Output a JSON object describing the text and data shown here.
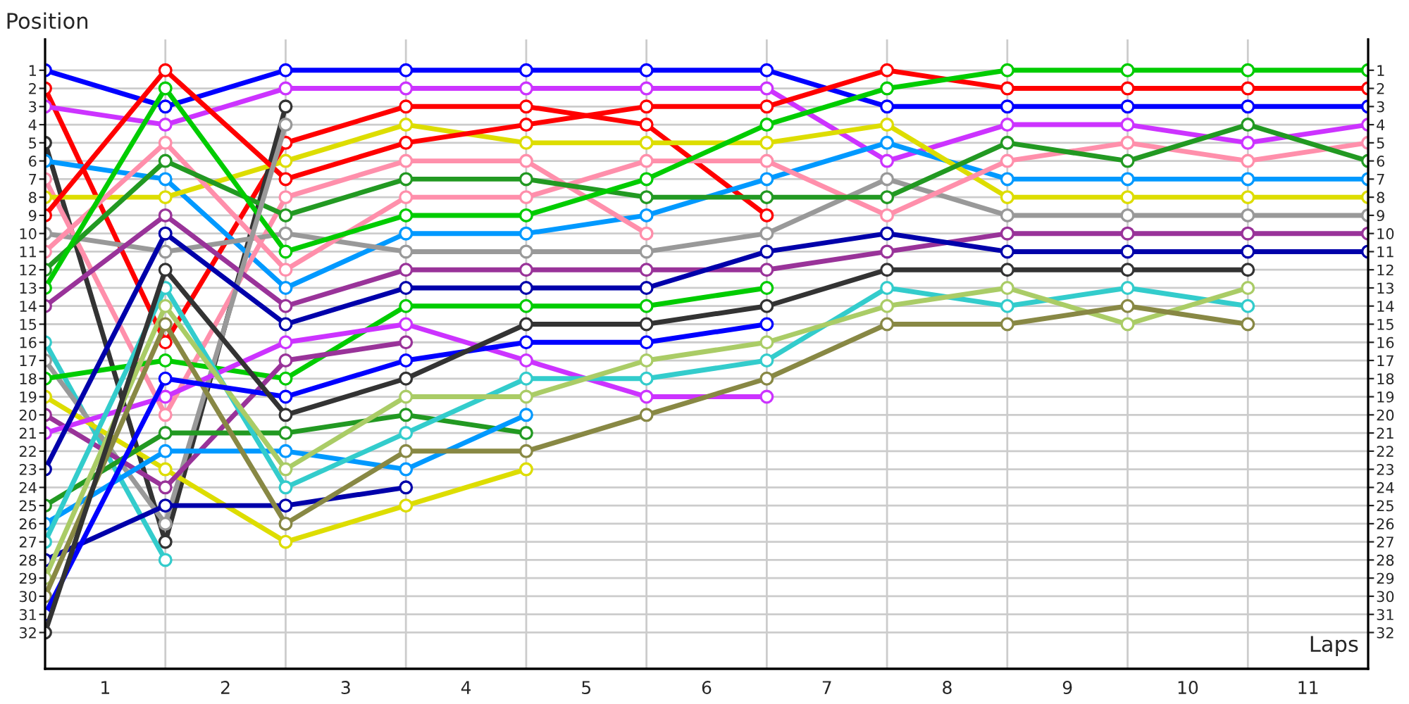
{
  "chart_data": {
    "type": "line",
    "xlabel": "Laps",
    "ylabel": "Position",
    "x": [
      0,
      1,
      2,
      3,
      4,
      5,
      6,
      7,
      8,
      9,
      10,
      11
    ],
    "xlim": [
      0,
      11
    ],
    "xticks": [
      {
        "value": 0.5,
        "label": "1"
      },
      {
        "value": 1,
        "label": null
      },
      {
        "value": 1.5,
        "label": "2"
      },
      {
        "value": 2,
        "label": null
      },
      {
        "value": 2.5,
        "label": "3"
      },
      {
        "value": 3,
        "label": null
      },
      {
        "value": 3.5,
        "label": "4"
      },
      {
        "value": 4,
        "label": null
      },
      {
        "value": 4.5,
        "label": "5"
      },
      {
        "value": 5,
        "label": null
      },
      {
        "value": 5.5,
        "label": "6"
      },
      {
        "value": 6,
        "label": null
      },
      {
        "value": 6.5,
        "label": "7"
      },
      {
        "value": 7,
        "label": null
      },
      {
        "value": 7.5,
        "label": "8"
      },
      {
        "value": 8,
        "label": null
      },
      {
        "value": 8.5,
        "label": "9"
      },
      {
        "value": 9,
        "label": null
      },
      {
        "value": 9.5,
        "label": "10"
      },
      {
        "value": 10,
        "label": null
      },
      {
        "value": 10.5,
        "label": "11"
      }
    ],
    "ylim": [
      34,
      -0.7
    ],
    "yticks": [
      1,
      2,
      3,
      4,
      5,
      6,
      7,
      8,
      9,
      10,
      11,
      12,
      13,
      14,
      15,
      16,
      17,
      18,
      19,
      20,
      21,
      22,
      23,
      24,
      25,
      26,
      27,
      28,
      29,
      30,
      31,
      32
    ],
    "y2lim": [
      34,
      -0.7
    ],
    "y2ticks": [
      1,
      2,
      3,
      4,
      5,
      6,
      7,
      8,
      9,
      10,
      11,
      12,
      13,
      14,
      15,
      16,
      17,
      18,
      19,
      20,
      21,
      22,
      23,
      24,
      25,
      26,
      27,
      28,
      29,
      30,
      31,
      32
    ],
    "grid": true,
    "marker": "circle",
    "line_style": "solid",
    "legend": false,
    "series": [
      {
        "color": "#0000ff",
        "values": [
          1,
          3,
          1,
          1,
          1,
          1,
          1,
          3,
          3,
          3,
          3,
          3
        ]
      },
      {
        "color": "#ff0000",
        "values": [
          2,
          16,
          5,
          3,
          3,
          4,
          9,
          null,
          null,
          null,
          null,
          null
        ]
      },
      {
        "color": "#cc33ff",
        "values": [
          3,
          4,
          2,
          2,
          2,
          2,
          2,
          6,
          4,
          4,
          5,
          4
        ]
      },
      {
        "color": "#333333",
        "values": [
          5,
          27,
          3,
          null,
          null,
          null,
          null,
          null,
          null,
          null,
          null,
          null
        ]
      },
      {
        "color": "#0099ff",
        "values": [
          6,
          7,
          13,
          10,
          10,
          9,
          7,
          5,
          7,
          7,
          7,
          7
        ]
      },
      {
        "color": "#ff8fab",
        "values": [
          7,
          20,
          8,
          6,
          6,
          10,
          null,
          null,
          null,
          null,
          null,
          null
        ]
      },
      {
        "color": "#dddd00",
        "values": [
          8,
          8,
          6,
          4,
          5,
          5,
          5,
          4,
          8,
          8,
          8,
          8
        ]
      },
      {
        "color": "#ff0000",
        "values": [
          9,
          1,
          7,
          5,
          4,
          3,
          3,
          1,
          2,
          2,
          2,
          2
        ]
      },
      {
        "color": "#999999",
        "values": [
          10,
          11,
          10,
          11,
          11,
          11,
          10,
          7,
          9,
          9,
          9,
          9
        ]
      },
      {
        "color": "#ff8fab",
        "values": [
          11,
          5,
          12,
          8,
          8,
          6,
          6,
          9,
          6,
          5,
          6,
          5
        ]
      },
      {
        "color": "#229922",
        "values": [
          12,
          6,
          9,
          7,
          7,
          8,
          8,
          8,
          5,
          6,
          4,
          6
        ]
      },
      {
        "color": "#00cc00",
        "values": [
          13,
          2,
          11,
          9,
          9,
          7,
          4,
          2,
          1,
          1,
          1,
          1
        ]
      },
      {
        "color": "#993399",
        "values": [
          14,
          9,
          14,
          12,
          12,
          12,
          12,
          11,
          10,
          10,
          10,
          10
        ]
      },
      {
        "color": "#33cccc",
        "values": [
          16,
          28,
          null,
          null,
          null,
          null,
          null,
          null,
          null,
          null,
          null,
          null
        ]
      },
      {
        "color": "#999999",
        "values": [
          17,
          26,
          4,
          null,
          null,
          null,
          null,
          null,
          null,
          null,
          null,
          null
        ]
      },
      {
        "color": "#00cc00",
        "values": [
          18,
          17,
          18,
          14,
          14,
          14,
          13,
          null,
          null,
          null,
          null,
          null
        ]
      },
      {
        "color": "#dddd00",
        "values": [
          19,
          23,
          27,
          25,
          23,
          null,
          null,
          null,
          null,
          null,
          null,
          null
        ]
      },
      {
        "color": "#993399",
        "values": [
          20,
          24,
          17,
          16,
          null,
          null,
          null,
          null,
          null,
          null,
          null,
          null
        ]
      },
      {
        "color": "#cc33ff",
        "values": [
          21,
          19,
          16,
          15,
          17,
          19,
          19,
          null,
          null,
          null,
          null,
          null
        ]
      },
      {
        "color": "#0000aa",
        "values": [
          23,
          10,
          15,
          13,
          13,
          13,
          11,
          10,
          11,
          11,
          11,
          11
        ]
      },
      {
        "color": "#229922",
        "values": [
          25,
          21,
          21,
          20,
          21,
          null,
          null,
          null,
          null,
          null,
          null,
          null
        ]
      },
      {
        "color": "#0099ff",
        "values": [
          26,
          22,
          22,
          23,
          20,
          null,
          null,
          null,
          null,
          null,
          null,
          null
        ]
      },
      {
        "color": "#33cccc",
        "values": [
          27,
          13,
          24,
          21,
          18,
          18,
          17,
          13,
          14,
          13,
          14,
          null
        ]
      },
      {
        "color": "#0000aa",
        "values": [
          28,
          25,
          25,
          24,
          null,
          null,
          null,
          null,
          null,
          null,
          null,
          null
        ]
      },
      {
        "color": "#aacc66",
        "values": [
          29,
          14,
          23,
          19,
          19,
          17,
          16,
          14,
          13,
          15,
          13,
          null
        ]
      },
      {
        "color": "#888844",
        "values": [
          30,
          15,
          26,
          22,
          22,
          20,
          18,
          15,
          15,
          14,
          15,
          null
        ]
      },
      {
        "color": "#0000ff",
        "values": [
          31,
          18,
          19,
          17,
          16,
          16,
          15,
          null,
          null,
          null,
          null,
          null
        ]
      },
      {
        "color": "#333333",
        "values": [
          32,
          12,
          20,
          18,
          15,
          15,
          14,
          12,
          12,
          12,
          12,
          null
        ]
      }
    ]
  }
}
